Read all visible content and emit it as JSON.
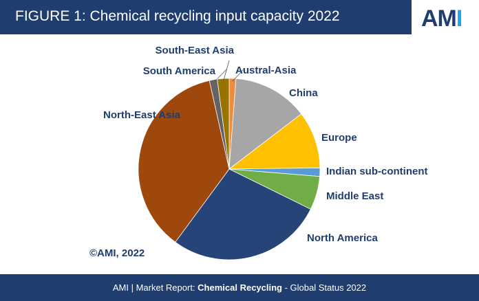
{
  "header": {
    "title": "FIGURE 1: Chemical recycling input capacity 2022",
    "logo_a": "AM",
    "logo_b": "I"
  },
  "copyright": "©AMI, 2022",
  "footer": {
    "part1": "AMI  |  Market Report: ",
    "part2": "Chemical Recycling",
    "part3": " - Global Status 2022"
  },
  "chart_data": {
    "type": "pie",
    "title": "Chemical recycling input capacity 2022",
    "unit": "percent (estimated)",
    "start": "12 o'clock, clockwise",
    "slices": [
      {
        "label": "Austral-Asia",
        "value": 1.2,
        "color": "#f08a3c"
      },
      {
        "label": "China",
        "value": 13.4,
        "color": "#a6a6a6"
      },
      {
        "label": "Europe",
        "value": 10.2,
        "color": "#ffc000"
      },
      {
        "label": "Indian sub-continent",
        "value": 1.5,
        "color": "#5b9bd5"
      },
      {
        "label": "Middle East",
        "value": 6.0,
        "color": "#70ad47"
      },
      {
        "label": "North America",
        "value": 27.8,
        "color": "#264478"
      },
      {
        "label": "North-East Asia",
        "value": 36.4,
        "color": "#9e480e"
      },
      {
        "label": "South America",
        "value": 1.4,
        "color": "#636363"
      },
      {
        "label": "South-East Asia",
        "value": 2.1,
        "color": "#997300"
      }
    ]
  }
}
